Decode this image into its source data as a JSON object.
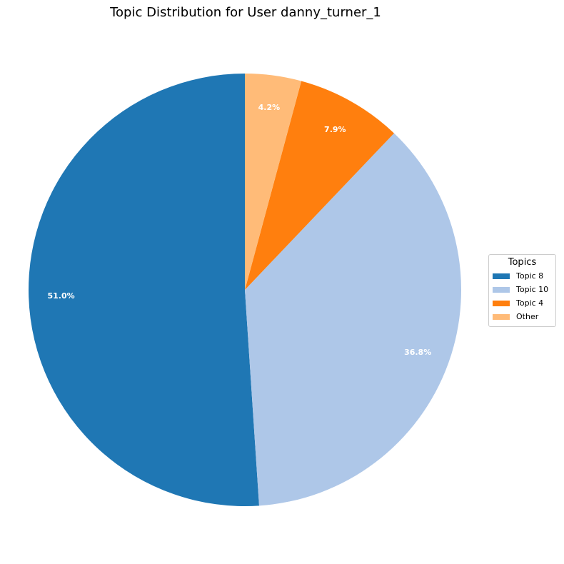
{
  "chart_data": {
    "type": "pie",
    "title": "Topic Distribution for User danny_turner_1",
    "labels": [
      "Topic 8",
      "Topic 10",
      "Topic 4",
      "Other"
    ],
    "values": [
      51.0,
      36.8,
      7.9,
      4.2
    ],
    "value_labels": [
      "51.0%",
      "36.8%",
      "7.9%",
      "4.2%"
    ],
    "colors": [
      "#1f77b4",
      "#aec7e8",
      "#ff7f0e",
      "#ffbb78"
    ],
    "start_angle_deg": 90,
    "direction": "counterclockwise",
    "legend": {
      "title": "Topics",
      "placement": "right"
    }
  }
}
